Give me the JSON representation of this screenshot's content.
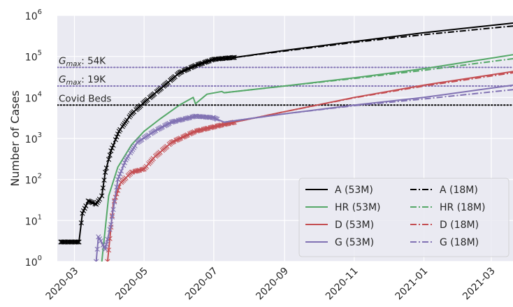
{
  "chart_data": {
    "type": "line",
    "title": "",
    "xlabel": "",
    "ylabel": "Number of Cases",
    "yscale": "log",
    "ylim": [
      1,
      1000000
    ],
    "xlim": [
      "2020-02-15",
      "2021-03-20"
    ],
    "grid": true,
    "legend_position": "lower-right",
    "x_ticks": [
      "2020-03",
      "2020-05",
      "2020-07",
      "2020-09",
      "2020-11",
      "2021-01",
      "2021-03"
    ],
    "y_ticks": [
      {
        "value": 1,
        "base": "10",
        "exp": "0"
      },
      {
        "value": 10,
        "base": "10",
        "exp": "1"
      },
      {
        "value": 100,
        "base": "10",
        "exp": "2"
      },
      {
        "value": 1000,
        "base": "10",
        "exp": "3"
      },
      {
        "value": 10000,
        "base": "10",
        "exp": "4"
      },
      {
        "value": 100000,
        "base": "10",
        "exp": "5"
      },
      {
        "value": 1000000,
        "base": "10",
        "exp": "6"
      }
    ],
    "reference_lines": [
      {
        "label_sym": "G",
        "label_sub": "max",
        "label_rest": ": 54K",
        "value": 54000,
        "color": "#8172b3"
      },
      {
        "label_sym": "G",
        "label_sub": "max",
        "label_rest": ": 19K",
        "value": 19000,
        "color": "#8172b3"
      },
      {
        "label": "Covid Beds",
        "value": 6500,
        "color": "#000000"
      }
    ],
    "series": [
      {
        "name": "A (53M)",
        "color": "#000000",
        "style": "solid",
        "marker": "x",
        "marker_until": "2020-07-20",
        "points": [
          [
            "2020-02-18",
            3
          ],
          [
            "2020-03-05",
            3
          ],
          [
            "2020-03-08",
            15
          ],
          [
            "2020-03-13",
            30
          ],
          [
            "2020-03-20",
            25
          ],
          [
            "2020-03-25",
            40
          ],
          [
            "2020-03-28",
            150
          ],
          [
            "2020-04-02",
            500
          ],
          [
            "2020-04-09",
            1500
          ],
          [
            "2020-04-20",
            4000
          ],
          [
            "2020-05-02",
            8000
          ],
          [
            "2020-05-15",
            16000
          ],
          [
            "2020-06-01",
            40000
          ],
          [
            "2020-06-15",
            60000
          ],
          [
            "2020-07-01",
            85000
          ],
          [
            "2020-07-20",
            95000
          ],
          [
            "2020-09-01",
            140000
          ],
          [
            "2020-11-01",
            230000
          ],
          [
            "2021-01-01",
            380000
          ],
          [
            "2021-03-20",
            650000
          ]
        ]
      },
      {
        "name": "A (18M)",
        "color": "#000000",
        "style": "dashdot",
        "points": [
          [
            "2020-07-20",
            95000
          ],
          [
            "2020-09-01",
            135000
          ],
          [
            "2020-11-01",
            220000
          ],
          [
            "2021-01-01",
            340000
          ],
          [
            "2021-03-20",
            550000
          ]
        ]
      },
      {
        "name": "HR (53M)",
        "color": "#55a868",
        "style": "solid",
        "points": [
          [
            "2020-03-25",
            1
          ],
          [
            "2020-03-31",
            40
          ],
          [
            "2020-04-08",
            200
          ],
          [
            "2020-04-20",
            700
          ],
          [
            "2020-05-01",
            1500
          ],
          [
            "2020-05-15",
            3000
          ],
          [
            "2020-06-01",
            6500
          ],
          [
            "2020-06-13",
            10000
          ],
          [
            "2020-06-15",
            7000
          ],
          [
            "2020-06-25",
            12000
          ],
          [
            "2020-07-08",
            14000
          ],
          [
            "2020-07-10",
            13000
          ],
          [
            "2020-09-01",
            19000
          ],
          [
            "2020-11-01",
            30000
          ],
          [
            "2021-01-01",
            50000
          ],
          [
            "2021-03-20",
            110000
          ]
        ]
      },
      {
        "name": "HR (18M)",
        "color": "#55a868",
        "style": "dashdot",
        "points": [
          [
            "2020-07-10",
            13000
          ],
          [
            "2020-09-01",
            19000
          ],
          [
            "2020-11-01",
            29000
          ],
          [
            "2021-01-01",
            46000
          ],
          [
            "2021-03-20",
            88000
          ]
        ]
      },
      {
        "name": "D (53M)",
        "color": "#c44e52",
        "style": "solid",
        "marker": "x",
        "marker_until": "2020-07-20",
        "points": [
          [
            "2020-03-30",
            1
          ],
          [
            "2020-04-04",
            25
          ],
          [
            "2020-04-10",
            80
          ],
          [
            "2020-04-20",
            150
          ],
          [
            "2020-05-01",
            180
          ],
          [
            "2020-05-10",
            350
          ],
          [
            "2020-05-25",
            800
          ],
          [
            "2020-06-15",
            1500
          ],
          [
            "2020-07-10",
            2200
          ],
          [
            "2020-07-25",
            2700
          ],
          [
            "2020-09-01",
            4500
          ],
          [
            "2020-11-01",
            10000
          ],
          [
            "2021-01-01",
            20000
          ],
          [
            "2021-03-20",
            43000
          ]
        ]
      },
      {
        "name": "D (18M)",
        "color": "#c44e52",
        "style": "dashdot",
        "points": [
          [
            "2020-07-25",
            2700
          ],
          [
            "2020-09-01",
            4500
          ],
          [
            "2020-11-01",
            9800
          ],
          [
            "2021-01-01",
            19000
          ],
          [
            "2021-03-20",
            40000
          ]
        ]
      },
      {
        "name": "G (53M)",
        "color": "#8172b3",
        "style": "solid",
        "marker": "x",
        "marker_until": "2020-07-05",
        "points": [
          [
            "2020-03-20",
            1
          ],
          [
            "2020-03-22",
            4
          ],
          [
            "2020-03-28",
            2
          ],
          [
            "2020-04-02",
            8
          ],
          [
            "2020-04-08",
            100
          ],
          [
            "2020-04-15",
            300
          ],
          [
            "2020-04-25",
            800
          ],
          [
            "2020-05-10",
            1500
          ],
          [
            "2020-05-25",
            2500
          ],
          [
            "2020-06-15",
            3500
          ],
          [
            "2020-07-01",
            3200
          ],
          [
            "2020-07-10",
            2500
          ],
          [
            "2020-09-01",
            4000
          ],
          [
            "2020-11-01",
            6500
          ],
          [
            "2021-01-01",
            10000
          ],
          [
            "2021-03-20",
            20000
          ]
        ]
      },
      {
        "name": "G (18M)",
        "color": "#8172b3",
        "style": "dashdot",
        "points": [
          [
            "2020-07-10",
            2500
          ],
          [
            "2020-09-01",
            4000
          ],
          [
            "2020-11-01",
            6300
          ],
          [
            "2021-01-01",
            9200
          ],
          [
            "2021-03-20",
            15500
          ]
        ]
      }
    ],
    "legend_order": [
      "A (53M)",
      "A (18M)",
      "HR (53M)",
      "HR (18M)",
      "D (53M)",
      "D (18M)",
      "G (53M)",
      "G (18M)"
    ]
  }
}
